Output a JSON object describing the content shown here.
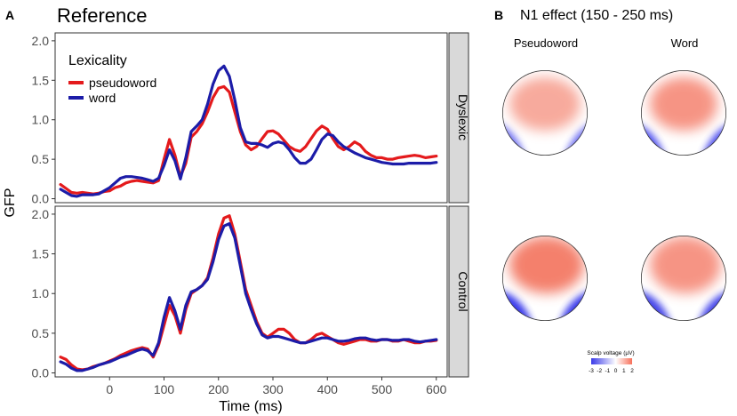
{
  "panel_a": {
    "letter": "A",
    "title": "Reference"
  },
  "panel_b": {
    "letter": "B",
    "title": "N1 effect (150 - 250 ms)"
  },
  "chart_data": [
    {
      "type": "line",
      "title": "Reference",
      "xlabel": "Time (ms)",
      "ylabel": "GFP",
      "xlim": [
        -100,
        620
      ],
      "xticks": [
        0,
        100,
        200,
        300,
        400,
        500,
        600
      ],
      "xtick_labels": [
        "0",
        "100",
        "200",
        "300",
        "400",
        "500",
        "600"
      ],
      "ylim": [
        -0.05,
        2.1
      ],
      "yticks": [
        0,
        0.5,
        1,
        1.5,
        2
      ],
      "ytick_labels": [
        "0.0",
        "0.5",
        "1.0",
        "1.5",
        "2.0"
      ],
      "grid": false,
      "legend": {
        "title": "Lexicality",
        "placement": "top-left",
        "entries": [
          {
            "label": "pseudoword",
            "color": "#e41a1c"
          },
          {
            "label": "word",
            "color": "#1c1ca8"
          }
        ]
      },
      "facets": [
        {
          "label": "Dyslexic",
          "series": [
            {
              "name": "pseudoword",
              "color": "#e41a1c",
              "x": [
                -90,
                -80,
                -70,
                -60,
                -50,
                -40,
                -30,
                -20,
                -10,
                0,
                10,
                20,
                30,
                40,
                50,
                60,
                70,
                80,
                90,
                100,
                110,
                120,
                130,
                140,
                150,
                160,
                170,
                180,
                190,
                200,
                210,
                220,
                230,
                240,
                250,
                260,
                270,
                280,
                290,
                300,
                310,
                320,
                330,
                340,
                350,
                360,
                370,
                380,
                390,
                400,
                410,
                420,
                430,
                440,
                450,
                460,
                470,
                480,
                490,
                500,
                510,
                520,
                530,
                540,
                550,
                560,
                570,
                580,
                590,
                600
              ],
              "y": [
                0.18,
                0.13,
                0.08,
                0.07,
                0.08,
                0.07,
                0.06,
                0.07,
                0.09,
                0.1,
                0.14,
                0.16,
                0.2,
                0.22,
                0.23,
                0.22,
                0.21,
                0.2,
                0.23,
                0.5,
                0.75,
                0.55,
                0.28,
                0.45,
                0.78,
                0.85,
                0.95,
                1.1,
                1.28,
                1.4,
                1.42,
                1.35,
                1.1,
                0.85,
                0.68,
                0.62,
                0.66,
                0.76,
                0.85,
                0.86,
                0.82,
                0.74,
                0.66,
                0.62,
                0.6,
                0.66,
                0.76,
                0.86,
                0.92,
                0.88,
                0.76,
                0.66,
                0.62,
                0.66,
                0.72,
                0.68,
                0.6,
                0.55,
                0.52,
                0.52,
                0.5,
                0.5,
                0.52,
                0.53,
                0.54,
                0.55,
                0.54,
                0.52,
                0.53,
                0.54
              ]
            },
            {
              "name": "word",
              "color": "#1c1ca8",
              "x": [
                -90,
                -80,
                -70,
                -60,
                -50,
                -40,
                -30,
                -20,
                -10,
                0,
                10,
                20,
                30,
                40,
                50,
                60,
                70,
                80,
                90,
                100,
                110,
                120,
                130,
                140,
                150,
                160,
                170,
                180,
                190,
                200,
                210,
                220,
                230,
                240,
                250,
                260,
                270,
                280,
                290,
                300,
                310,
                320,
                330,
                340,
                350,
                360,
                370,
                380,
                390,
                400,
                410,
                420,
                430,
                440,
                450,
                460,
                470,
                480,
                490,
                500,
                510,
                520,
                530,
                540,
                550,
                560,
                570,
                580,
                590,
                600
              ],
              "y": [
                0.12,
                0.08,
                0.04,
                0.03,
                0.05,
                0.05,
                0.05,
                0.06,
                0.1,
                0.14,
                0.2,
                0.26,
                0.28,
                0.28,
                0.27,
                0.26,
                0.24,
                0.22,
                0.26,
                0.42,
                0.62,
                0.48,
                0.25,
                0.52,
                0.85,
                0.92,
                1.0,
                1.2,
                1.45,
                1.62,
                1.68,
                1.55,
                1.25,
                0.9,
                0.72,
                0.7,
                0.7,
                0.68,
                0.65,
                0.7,
                0.72,
                0.7,
                0.62,
                0.52,
                0.45,
                0.45,
                0.5,
                0.62,
                0.75,
                0.82,
                0.8,
                0.72,
                0.66,
                0.62,
                0.58,
                0.55,
                0.52,
                0.5,
                0.48,
                0.46,
                0.45,
                0.44,
                0.44,
                0.44,
                0.45,
                0.45,
                0.45,
                0.45,
                0.45,
                0.46
              ]
            }
          ]
        },
        {
          "label": "Control",
          "series": [
            {
              "name": "pseudoword",
              "color": "#e41a1c",
              "x": [
                -90,
                -80,
                -70,
                -60,
                -50,
                -40,
                -30,
                -20,
                -10,
                0,
                10,
                20,
                30,
                40,
                50,
                60,
                70,
                80,
                90,
                100,
                110,
                120,
                130,
                140,
                150,
                160,
                170,
                180,
                190,
                200,
                210,
                220,
                230,
                240,
                250,
                260,
                270,
                280,
                290,
                300,
                310,
                320,
                330,
                340,
                350,
                360,
                370,
                380,
                390,
                400,
                410,
                420,
                430,
                440,
                450,
                460,
                470,
                480,
                490,
                500,
                510,
                520,
                530,
                540,
                550,
                560,
                570,
                580,
                590,
                600
              ],
              "y": [
                0.2,
                0.17,
                0.1,
                0.05,
                0.04,
                0.05,
                0.08,
                0.1,
                0.12,
                0.15,
                0.18,
                0.22,
                0.25,
                0.28,
                0.3,
                0.32,
                0.3,
                0.2,
                0.35,
                0.6,
                0.85,
                0.72,
                0.5,
                0.8,
                1.0,
                1.05,
                1.1,
                1.2,
                1.45,
                1.75,
                1.95,
                1.98,
                1.75,
                1.4,
                1.05,
                0.85,
                0.65,
                0.5,
                0.45,
                0.5,
                0.55,
                0.55,
                0.5,
                0.42,
                0.38,
                0.38,
                0.42,
                0.48,
                0.5,
                0.46,
                0.42,
                0.38,
                0.36,
                0.38,
                0.4,
                0.42,
                0.42,
                0.4,
                0.4,
                0.42,
                0.42,
                0.4,
                0.4,
                0.42,
                0.4,
                0.38,
                0.38,
                0.4,
                0.4,
                0.41
              ]
            },
            {
              "name": "word",
              "color": "#1c1ca8",
              "x": [
                -90,
                -80,
                -70,
                -60,
                -50,
                -40,
                -30,
                -20,
                -10,
                0,
                10,
                20,
                30,
                40,
                50,
                60,
                70,
                80,
                90,
                100,
                110,
                120,
                130,
                140,
                150,
                160,
                170,
                180,
                190,
                200,
                210,
                220,
                230,
                240,
                250,
                260,
                270,
                280,
                290,
                300,
                310,
                320,
                330,
                340,
                350,
                360,
                370,
                380,
                390,
                400,
                410,
                420,
                430,
                440,
                450,
                460,
                470,
                480,
                490,
                500,
                510,
                520,
                530,
                540,
                550,
                560,
                570,
                580,
                590,
                600
              ],
              "y": [
                0.14,
                0.11,
                0.06,
                0.03,
                0.03,
                0.05,
                0.07,
                0.1,
                0.12,
                0.14,
                0.17,
                0.2,
                0.22,
                0.25,
                0.28,
                0.3,
                0.28,
                0.22,
                0.38,
                0.7,
                0.95,
                0.78,
                0.55,
                0.85,
                1.02,
                1.05,
                1.1,
                1.18,
                1.4,
                1.68,
                1.85,
                1.88,
                1.7,
                1.35,
                1.0,
                0.8,
                0.62,
                0.48,
                0.44,
                0.46,
                0.46,
                0.44,
                0.42,
                0.4,
                0.38,
                0.38,
                0.4,
                0.42,
                0.44,
                0.44,
                0.42,
                0.4,
                0.4,
                0.41,
                0.43,
                0.44,
                0.44,
                0.42,
                0.41,
                0.42,
                0.42,
                0.41,
                0.41,
                0.42,
                0.42,
                0.4,
                0.39,
                0.4,
                0.41,
                0.42
              ]
            }
          ]
        }
      ]
    },
    {
      "type": "heatmap",
      "title": "N1 effect (150 - 250 ms)",
      "columns": [
        "Pseudoword",
        "Word"
      ],
      "rows": [
        "Dyslexic",
        "Control"
      ],
      "scale": {
        "label": "Scalp voltage (µV)",
        "range": [
          -3,
          2
        ],
        "tick_labels": [
          "-3",
          "-2",
          "-1",
          "0",
          "1",
          "2"
        ],
        "low_color": "#3a3ae8",
        "mid_color": "#ffffff",
        "high_color": "#f7705a"
      },
      "maps": [
        {
          "row": "Dyslexic",
          "column": "Pseudoword",
          "positive_max": 1.2,
          "negative_min": -2.2
        },
        {
          "row": "Dyslexic",
          "column": "Word",
          "positive_max": 1.4,
          "negative_min": -2.4
        },
        {
          "row": "Control",
          "column": "Pseudoword",
          "positive_max": 1.7,
          "negative_min": -2.8
        },
        {
          "row": "Control",
          "column": "Word",
          "positive_max": 1.5,
          "negative_min": -2.6
        }
      ]
    }
  ]
}
